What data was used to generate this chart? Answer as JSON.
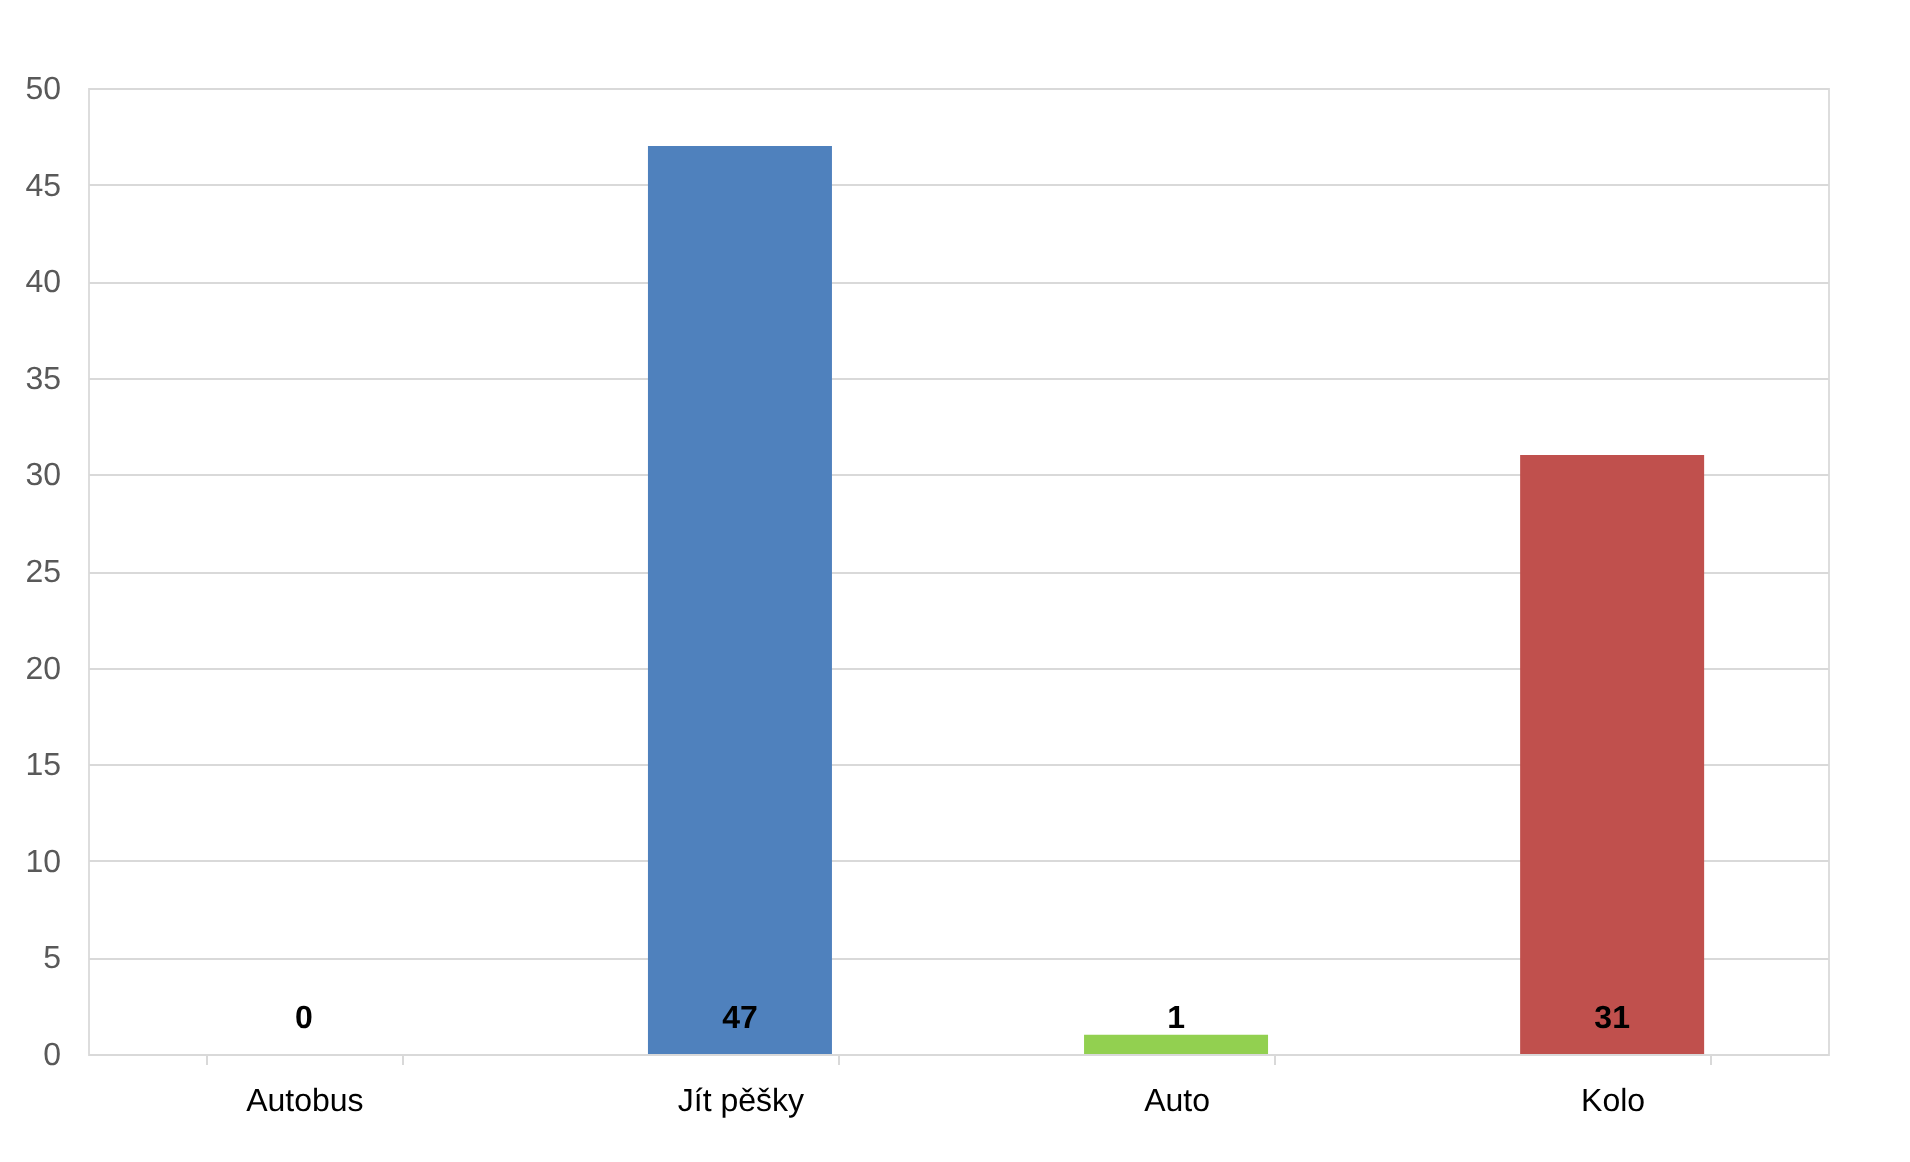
{
  "chart_data": {
    "type": "bar",
    "categories": [
      "Autobus",
      "Jít pěšky",
      "Auto",
      "Kolo"
    ],
    "values": [
      0,
      47,
      1,
      31
    ],
    "colors": [
      "#4f81bd",
      "#4f81bd",
      "#92d050",
      "#c0504d"
    ],
    "ylim": [
      0,
      50
    ],
    "yticks": [
      0,
      5,
      10,
      15,
      20,
      25,
      30,
      35,
      40,
      45,
      50
    ],
    "grid": "y",
    "data_labels": true,
    "legend": false
  }
}
